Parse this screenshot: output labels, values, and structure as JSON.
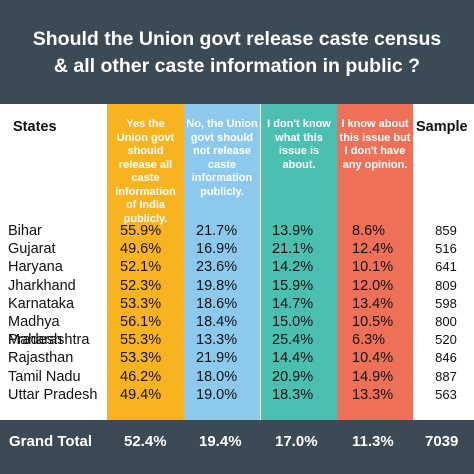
{
  "title_line1": "Should the Union govt release caste census",
  "title_line2": "& all other caste information in public ?",
  "headers": {
    "states": "States",
    "sample": "Sample",
    "options": [
      "Yes the Union govt should release all caste information of India publicly.",
      "No, the Union govt should not release caste information publicly.",
      "I don't know what this issue is about.",
      "I know about this issue but I don't have any opinion."
    ]
  },
  "colors": {
    "background": "#3c4a55",
    "yes": "#f7b320",
    "no": "#8dc9ec",
    "dont_know": "#4cc0b0",
    "no_opinion": "#ee7058"
  },
  "chart_data": {
    "type": "table",
    "columns": [
      "States",
      "Yes the Union govt should release all caste information of India publicly.",
      "No, the Union govt should not release caste information publicly.",
      "I don't know what this issue is about.",
      "I know about this issue but I don't have any opinion.",
      "Sample"
    ],
    "rows": [
      {
        "state": "Bihar",
        "yes": "55.9%",
        "no": "21.7%",
        "dont_know": "13.9%",
        "no_opinion": "8.6%",
        "sample": "859"
      },
      {
        "state": "Gujarat",
        "yes": "49.6%",
        "no": "16.9%",
        "dont_know": "21.1%",
        "no_opinion": "12.4%",
        "sample": "516"
      },
      {
        "state": "Haryana",
        "yes": "52.1%",
        "no": "23.6%",
        "dont_know": "14.2%",
        "no_opinion": "10.1%",
        "sample": "641"
      },
      {
        "state": "Jharkhand",
        "yes": "52.3%",
        "no": "19.8%",
        "dont_know": "15.9%",
        "no_opinion": "12.0%",
        "sample": "809"
      },
      {
        "state": "Karnataka",
        "yes": "53.3%",
        "no": "18.6%",
        "dont_know": "14.7%",
        "no_opinion": "13.4%",
        "sample": "598"
      },
      {
        "state": "Madhya Pradesh",
        "yes": "56.1%",
        "no": "18.4%",
        "dont_know": "15.0%",
        "no_opinion": "10.5%",
        "sample": "800"
      },
      {
        "state": "Maharashtra",
        "yes": "55.3%",
        "no": "13.3%",
        "dont_know": "25.4%",
        "no_opinion": "6.3%",
        "sample": "520"
      },
      {
        "state": "Rajasthan",
        "yes": "53.3%",
        "no": "21.9%",
        "dont_know": "14.4%",
        "no_opinion": "10.4%",
        "sample": "846"
      },
      {
        "state": "Tamil Nadu",
        "yes": "46.2%",
        "no": "18.0%",
        "dont_know": "20.9%",
        "no_opinion": "14.9%",
        "sample": "887"
      },
      {
        "state": "Uttar Pradesh",
        "yes": "49.4%",
        "no": "19.0%",
        "dont_know": "18.3%",
        "no_opinion": "13.3%",
        "sample": "563"
      }
    ],
    "total": {
      "label": "Grand Total",
      "yes": "52.4%",
      "no": "19.4%",
      "dont_know": "17.0%",
      "no_opinion": "11.3%",
      "sample": "7039"
    }
  }
}
